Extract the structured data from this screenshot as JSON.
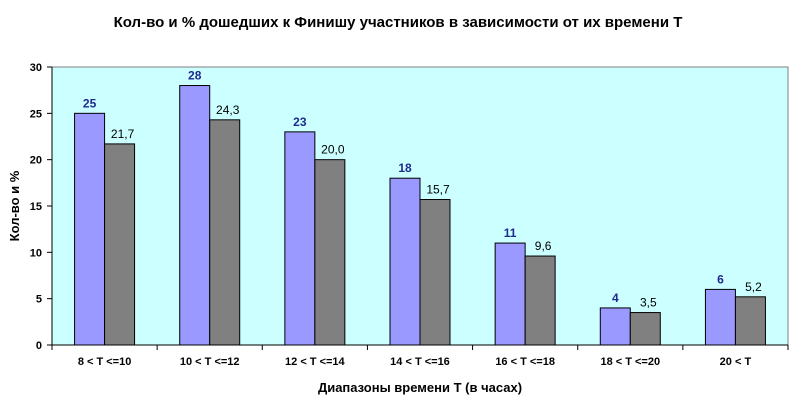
{
  "chart_data": {
    "type": "bar",
    "title": "Кол-во и % дошедших к Финишу участников в зависимости от их времени T",
    "xlabel": "Диапазоны времени T (в часах)",
    "ylabel": "Кол-во и %",
    "ylim": [
      0,
      30
    ],
    "yticks": [
      "0",
      "5",
      "10",
      "15",
      "20",
      "25",
      "30"
    ],
    "grid": false,
    "legend": "none",
    "categories": [
      "8 < T <=10",
      "10 < T <=12",
      "12 < T <=14",
      "14 < T <=16",
      "16 < T <=18",
      "18 < T <=20",
      "20 < T"
    ],
    "series": [
      {
        "values": [
          25,
          28,
          23,
          18,
          11,
          4,
          6
        ],
        "labels": [
          "25",
          "28",
          "23",
          "18",
          "11",
          "4",
          "6"
        ],
        "color": "#9999ff"
      },
      {
        "values": [
          21.7,
          24.3,
          20.0,
          15.7,
          9.6,
          3.5,
          5.2
        ],
        "labels": [
          "21,7",
          "24,3",
          "20,0",
          "15,7",
          "9,6",
          "3,5",
          "5,2"
        ],
        "color": "#808080"
      }
    ],
    "colors": {
      "plot_background": "#ccffff",
      "label_series_1": "#1f2a8f",
      "label_series_2": "#000000"
    }
  }
}
